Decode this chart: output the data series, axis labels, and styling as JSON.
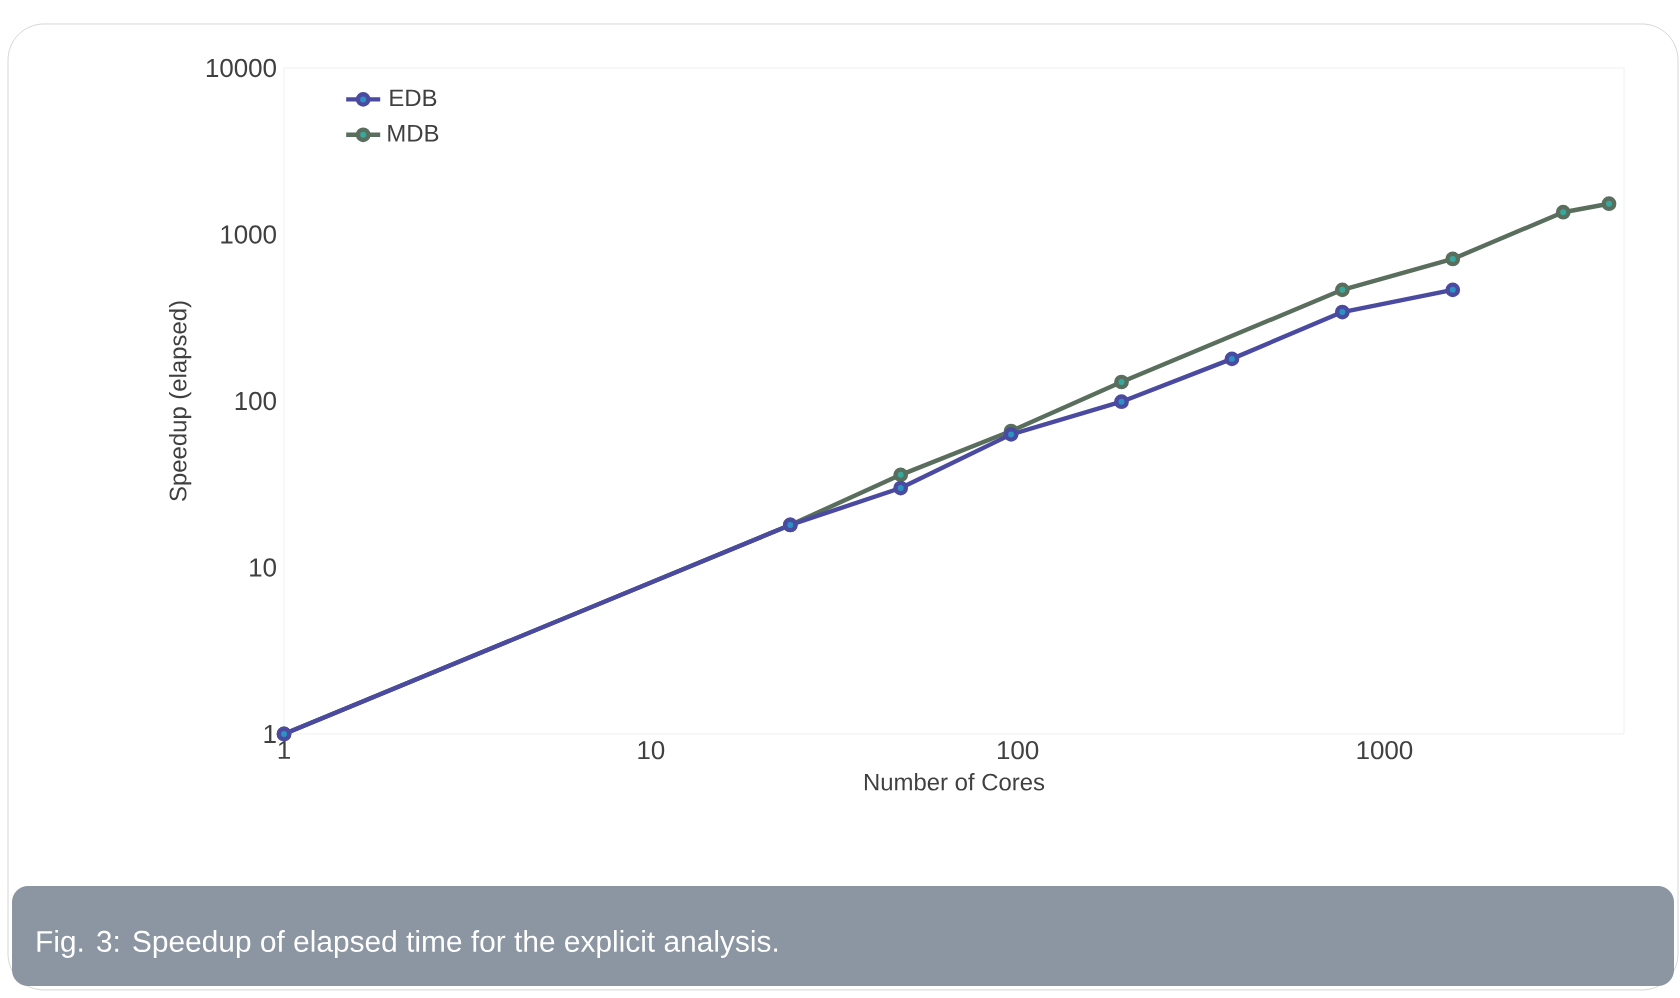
{
  "chart_data": {
    "type": "line",
    "xlabel": "Number of Cores",
    "ylabel": "Speedup (elapsed)",
    "annotations": [
      "Fig. 3: Speedup of elapsed time for the explicit analysis."
    ],
    "log": "xy",
    "xlim": [
      1,
      4500
    ],
    "ylim": [
      1,
      10000
    ],
    "xticks": [
      1,
      10,
      100,
      1000
    ],
    "yticks": [
      1,
      10,
      100,
      1000,
      10000
    ],
    "legend": "top left",
    "marker": "circle",
    "line_style": "solid",
    "grid": false,
    "series": [
      {
        "name": "EDB",
        "color": "#4a4aa0",
        "x": [
          1,
          24,
          48,
          96,
          192,
          384,
          768,
          1536
        ],
        "values": [
          1,
          18,
          30,
          63,
          99,
          179,
          342,
          465
        ]
      },
      {
        "name": "MDB",
        "color": "#5a6e5e",
        "x": [
          1,
          24,
          48,
          96,
          192,
          768,
          1536,
          3072,
          4096
        ],
        "values": [
          1,
          18,
          36,
          66,
          130,
          465,
          713,
          1360,
          1530
        ]
      }
    ]
  }
}
